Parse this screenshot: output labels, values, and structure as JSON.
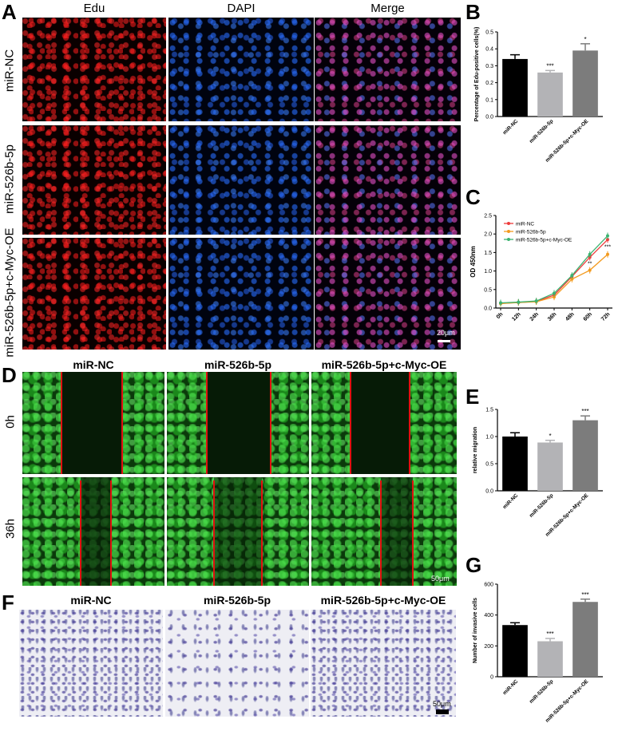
{
  "panels": {
    "A": {
      "letter": "A",
      "columns": [
        "Edu",
        "DAPI",
        "Merge"
      ],
      "rows": [
        "miR-NC",
        "miR-526b-5p",
        "miR-526b-5p+c-Myc-OE"
      ],
      "scale": "20μm"
    },
    "B": {
      "letter": "B"
    },
    "C": {
      "letter": "C"
    },
    "D": {
      "letter": "D",
      "columns": [
        "miR-NC",
        "miR-526b-5p",
        "miR-526b-5p+c-Myc-OE"
      ],
      "rows": [
        "0h",
        "36h"
      ],
      "scale": "50μm"
    },
    "E": {
      "letter": "E"
    },
    "F": {
      "letter": "F",
      "columns": [
        "miR-NC",
        "miR-526b-5p",
        "miR-526b-5p+c-Myc-OE"
      ],
      "scale": "50μm"
    },
    "G": {
      "letter": "G"
    }
  },
  "chart_data": [
    {
      "id": "B",
      "type": "bar",
      "ylabel": "Percentage of Edu-positive cells(%)",
      "xlabel": "",
      "categories": [
        "miR-NC",
        "miR-526b-5p",
        "miR-526b-5p+c-Myc-OE"
      ],
      "values": [
        0.34,
        0.26,
        0.39
      ],
      "errors": [
        0.025,
        0.012,
        0.04
      ],
      "significance": [
        "",
        "***",
        "*"
      ],
      "ylim": [
        0,
        0.5
      ],
      "yticks": [
        "0.0",
        "0.1",
        "0.2",
        "0.3",
        "0.4",
        "0.5"
      ],
      "colors": [
        "#000000",
        "#b3b3b6",
        "#7c7c7c"
      ]
    },
    {
      "id": "C",
      "type": "line",
      "ylabel": "OD 450nm",
      "x": [
        "0h",
        "12h",
        "24h",
        "36h",
        "48h",
        "60h",
        "72h"
      ],
      "series": [
        {
          "name": "miR-NC",
          "color": "#ee3b3b",
          "values": [
            0.13,
            0.15,
            0.18,
            0.35,
            0.85,
            1.37,
            1.85
          ]
        },
        {
          "name": "miR-526b-5p",
          "color": "#f39a1e",
          "values": [
            0.12,
            0.15,
            0.17,
            0.3,
            0.78,
            1.02,
            1.45
          ]
        },
        {
          "name": "miR-526b-5p+c-Myc-OE",
          "color": "#3cb371",
          "values": [
            0.14,
            0.16,
            0.19,
            0.4,
            0.88,
            1.45,
            1.95
          ]
        }
      ],
      "significance": [
        {
          "x": "60h",
          "label": "**"
        },
        {
          "x": "72h",
          "label": "***"
        }
      ],
      "ylim": [
        0,
        2.5
      ],
      "yticks": [
        "0.0",
        "0.5",
        "1.0",
        "1.5",
        "2.0",
        "2.5"
      ],
      "legend": "top-left"
    },
    {
      "id": "E",
      "type": "bar",
      "ylabel": "relative migration",
      "xlabel": "",
      "categories": [
        "miR-NC",
        "miR-526b-5p",
        "miR-526b-5p+c-Myc-OE"
      ],
      "values": [
        1.0,
        0.89,
        1.3
      ],
      "errors": [
        0.07,
        0.04,
        0.08
      ],
      "significance": [
        "",
        "*",
        "***"
      ],
      "ylim": [
        0,
        1.5
      ],
      "yticks": [
        "0.0",
        "0.5",
        "1.0",
        "1.5"
      ],
      "colors": [
        "#000000",
        "#b3b3b6",
        "#7c7c7c"
      ]
    },
    {
      "id": "G",
      "type": "bar",
      "ylabel": "Number of invasive cells",
      "xlabel": "",
      "categories": [
        "miR-NC",
        "miR-526b-5p",
        "miR-526b-5p+c-Myc-OE"
      ],
      "values": [
        335,
        230,
        485
      ],
      "errors": [
        15,
        18,
        18
      ],
      "significance": [
        "",
        "***",
        "***"
      ],
      "ylim": [
        0,
        600
      ],
      "yticks": [
        "0",
        "200",
        "400",
        "600"
      ],
      "colors": [
        "#000000",
        "#b3b3b6",
        "#7c7c7c"
      ]
    }
  ]
}
